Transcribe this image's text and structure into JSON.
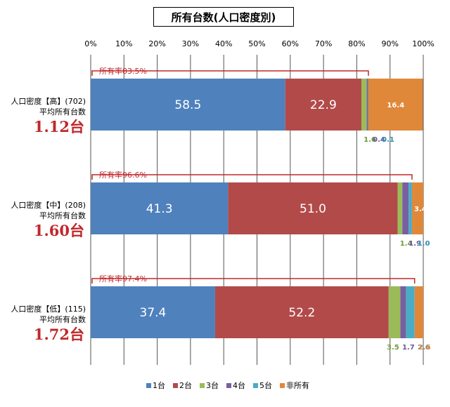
{
  "chart_data": {
    "type": "bar",
    "orientation": "horizontal",
    "stacked": true,
    "title": "所有台数(人口密度別)",
    "xlim": [
      0,
      100
    ],
    "x_ticks": [
      "0%",
      "10%",
      "20%",
      "30%",
      "40%",
      "50%",
      "60%",
      "70%",
      "80%",
      "90%",
      "100%"
    ],
    "grid": true,
    "legend_position": "bottom",
    "legend": [
      "1台",
      "2台",
      "3台",
      "4台",
      "5台",
      "非所有"
    ],
    "colors": [
      "#4f81bd",
      "#b24a4a",
      "#9bbb59",
      "#7860a0",
      "#4bacc6",
      "#e0883a"
    ],
    "label_colors": [
      "#ffffff",
      "#ffffff",
      "#6e9a3a",
      "#6a5a9a",
      "#2f8fb0",
      "#ffffff"
    ],
    "avg_color": "#c0282b",
    "rows": [
      {
        "name": "人口密度【高】(702)",
        "avg_label": "平均所有台数",
        "avg_value": "1.12台",
        "ownership": "所有率83.5%",
        "values": [
          58.5,
          22.9,
          1.6,
          0.4,
          0.1,
          16.4
        ],
        "labels": [
          "58.5",
          "22.9",
          "1.6",
          "0.4",
          "0.1",
          "16.4"
        ]
      },
      {
        "name": "人口密度【中】(208)",
        "avg_label": "平均所有台数",
        "avg_value": "1.60台",
        "ownership": "所有率96.6%",
        "values": [
          41.3,
          51.0,
          1.4,
          1.9,
          1.0,
          3.4
        ],
        "labels": [
          "41.3",
          "51.0",
          "1.4",
          "1.9",
          "1.0",
          "3.4"
        ]
      },
      {
        "name": "人口密度【低】(115)",
        "avg_label": "平均所有台数",
        "avg_value": "1.72台",
        "ownership": "所有率97.4%",
        "values": [
          37.4,
          52.2,
          3.5,
          1.7,
          2.6,
          2.6
        ],
        "labels": [
          "37.4",
          "52.2",
          "3.5",
          "1.7",
          "2.6",
          "2.6"
        ]
      }
    ]
  }
}
